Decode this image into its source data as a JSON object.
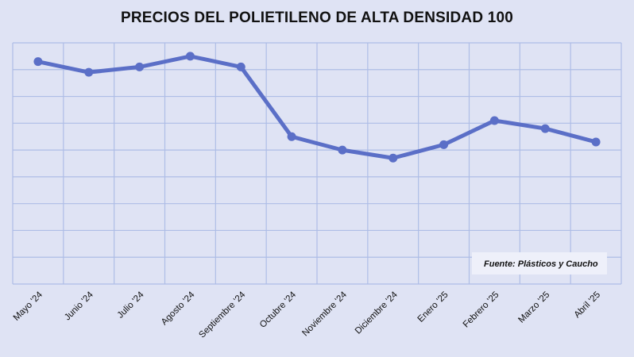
{
  "chart_data": {
    "type": "line",
    "title": "PRECIOS DEL POLIETILENO DE ALTA DENSIDAD 100",
    "categories": [
      "Mayo '24",
      "Junio '24",
      "Julio '24",
      "Agosto '24",
      "Septiembre '24",
      "Octubre '24",
      "Noviembre '24",
      "Diciembre '24",
      "Enero '25",
      "Febrero '25",
      "Marzo '25",
      "Abril '25"
    ],
    "series": [
      {
        "values": [
          8.3,
          7.9,
          8.1,
          8.5,
          8.1,
          5.5,
          5.0,
          4.7,
          5.2,
          6.1,
          5.8,
          5.3
        ]
      }
    ],
    "ylim": [
      0,
      9
    ],
    "grid": true,
    "source": "Fuente: Plásticos y Caucho",
    "colors": {
      "line": "#5b6fc7",
      "grid": "#aebde6",
      "background": "#dfe3f4"
    }
  }
}
